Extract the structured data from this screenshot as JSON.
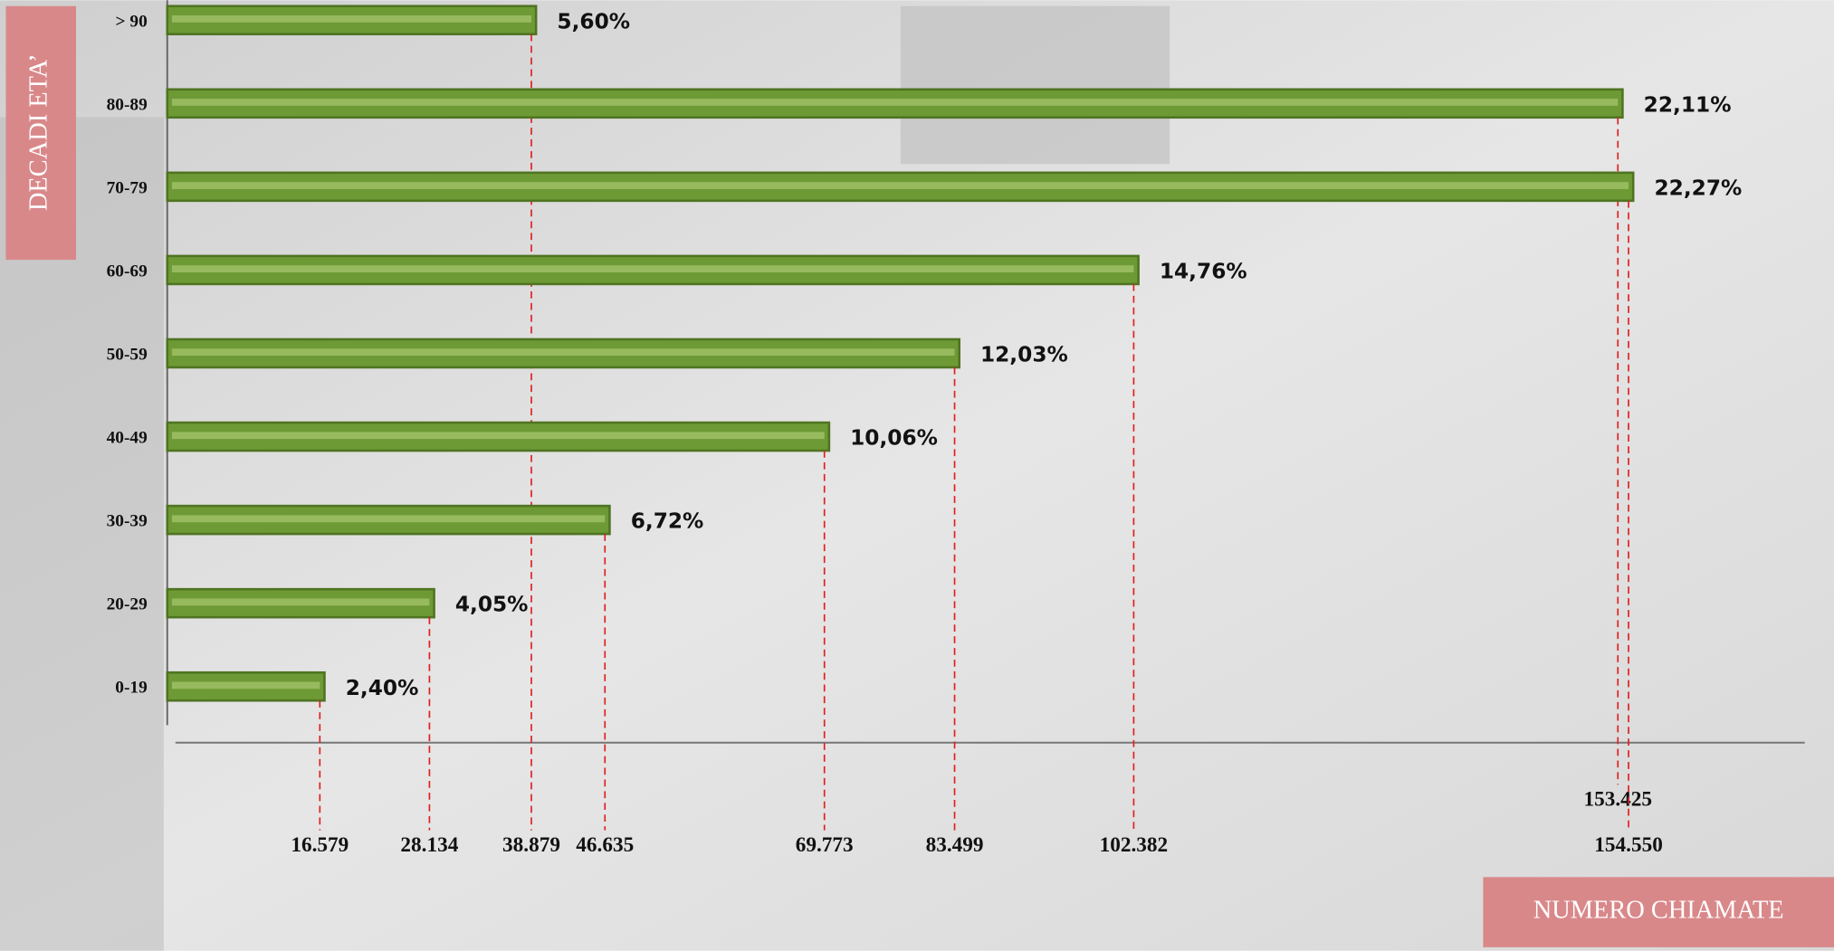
{
  "chart_data": {
    "type": "bar",
    "orientation": "horizontal",
    "y_label": "DECADI ETA’",
    "x_label": "NUMERO CHIAMATE",
    "categories": [
      "> 90",
      "80-89",
      "70-79",
      "60-69",
      "50-59",
      "40-49",
      "30-39",
      "20-29",
      "0-19"
    ],
    "values": [
      38879,
      153425,
      154550,
      102382,
      83499,
      69773,
      46635,
      28134,
      16579
    ],
    "value_labels": [
      "38.879",
      "153.425",
      "154.550",
      "102.382",
      "83.499",
      "69.773",
      "46.635",
      "28.134",
      "16.579"
    ],
    "percentages": [
      5.6,
      22.11,
      22.27,
      14.76,
      12.03,
      10.06,
      6.72,
      4.05,
      2.4
    ],
    "percentage_labels": [
      "5,60%",
      "22,11%",
      "22,27%",
      "14,76%",
      "12,03%",
      "10,06%",
      "6,72%",
      "4,05%",
      "2,40%"
    ],
    "color": "#6e9a35",
    "xlim": [
      0,
      155000
    ]
  }
}
